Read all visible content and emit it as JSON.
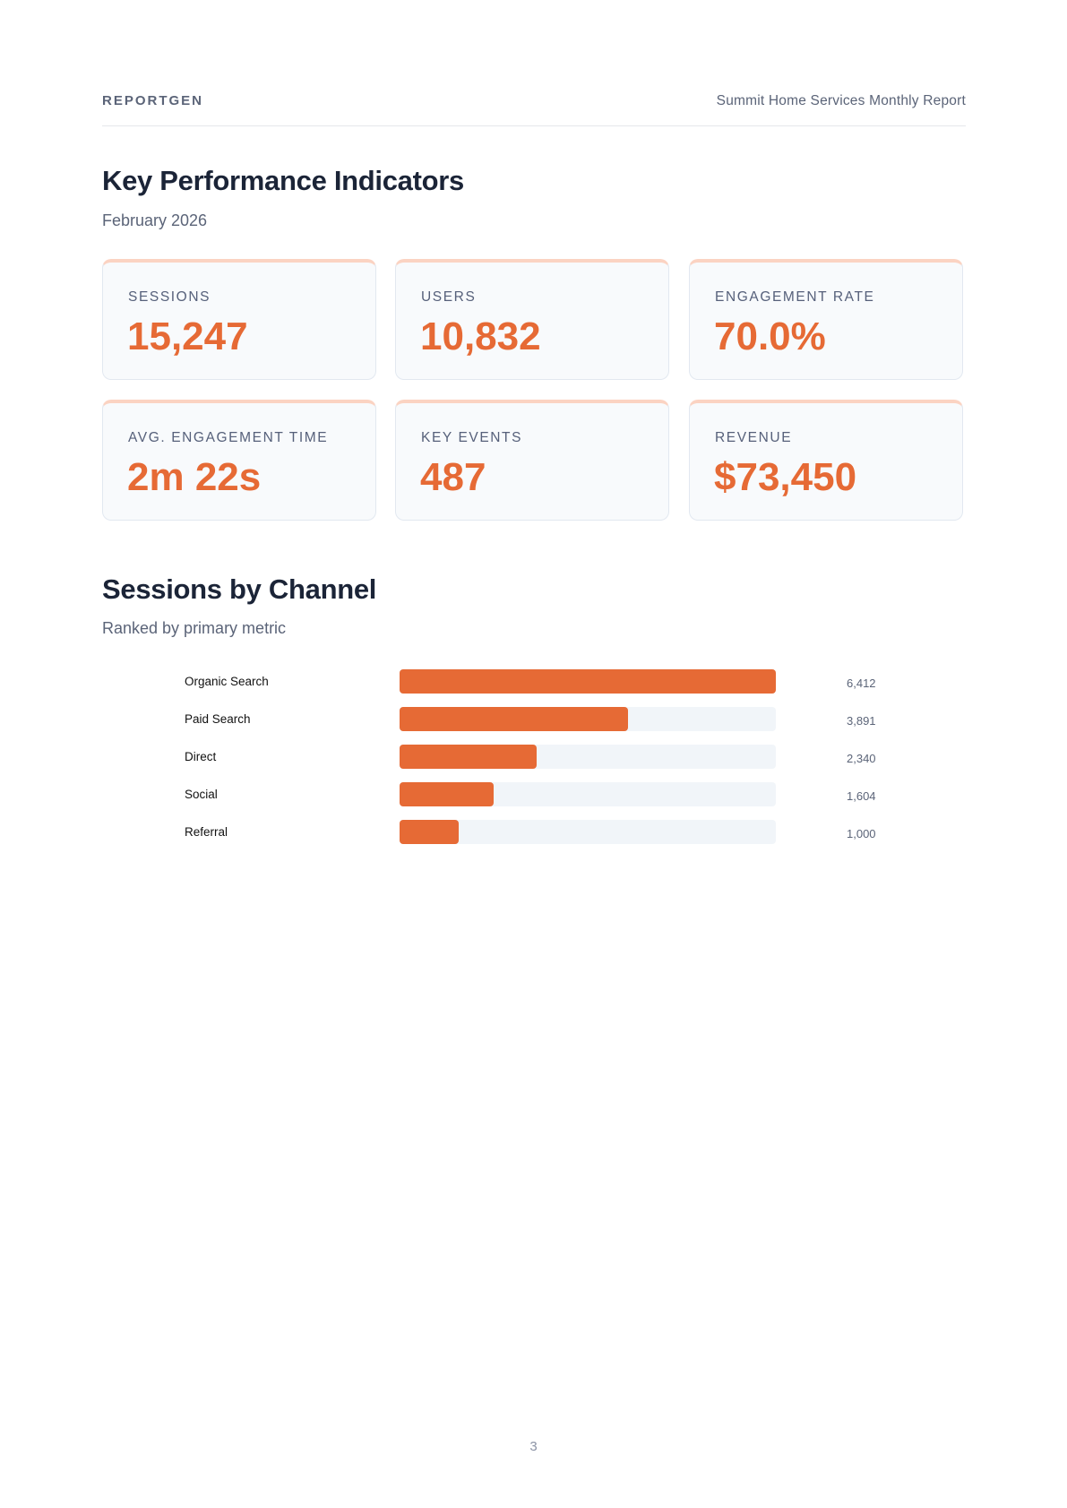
{
  "header": {
    "brand": "REPORTGEN",
    "report_title": "Summit Home Services Monthly Report"
  },
  "kpi_section": {
    "title": "Key Performance Indicators",
    "subtitle": "February 2026"
  },
  "kpis": [
    {
      "label": "SESSIONS",
      "value": "15,247"
    },
    {
      "label": "USERS",
      "value": "10,832"
    },
    {
      "label": "ENGAGEMENT RATE",
      "value": "70.0%"
    },
    {
      "label": "AVG. ENGAGEMENT TIME",
      "value": "2m 22s"
    },
    {
      "label": "KEY EVENTS",
      "value": "487"
    },
    {
      "label": "REVENUE",
      "value": "$73,450"
    }
  ],
  "channel_section": {
    "title": "Sessions by Channel",
    "subtitle": "Ranked by primary metric"
  },
  "colors": {
    "accent": "#e66a35",
    "track": "#f1f5f9",
    "card_top": "#fbd3c2"
  },
  "chart_data": {
    "type": "bar",
    "orientation": "horizontal",
    "categories": [
      "Organic Search",
      "Paid Search",
      "Direct",
      "Social",
      "Referral"
    ],
    "values": [
      6412,
      3891,
      2340,
      1604,
      1000
    ],
    "value_labels": [
      "6,412",
      "3,891",
      "2,340",
      "1,604",
      "1,000"
    ],
    "xlim": [
      0,
      6412
    ],
    "grid": false
  },
  "footer": {
    "page_number": "3"
  }
}
